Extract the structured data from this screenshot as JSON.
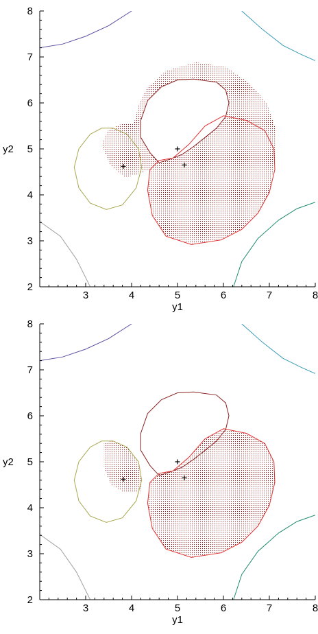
{
  "chart_data": [
    {
      "type": "scatter",
      "title": "",
      "xlabel": "y1",
      "ylabel": "y2",
      "xlim": [
        2,
        8
      ],
      "ylim": [
        2,
        8
      ],
      "x_ticks": [
        2,
        3,
        4,
        5,
        6,
        7,
        8
      ],
      "y_ticks": [
        2,
        3,
        4,
        5,
        6,
        7,
        8
      ],
      "grid": false,
      "points": [
        {
          "x": 3.82,
          "y": 4.62
        },
        {
          "x": 5.0,
          "y": 5.0
        },
        {
          "x": 5.15,
          "y": 4.65
        }
      ],
      "contours": [
        {
          "color": "#5b4ea0",
          "points": [
            [
              2.0,
              7.2
            ],
            [
              2.5,
              7.28
            ],
            [
              3.0,
              7.45
            ],
            [
              3.5,
              7.68
            ],
            [
              4.0,
              8.0
            ]
          ]
        },
        {
          "color": "#3a9ab8",
          "points": [
            [
              6.4,
              8.0
            ],
            [
              6.85,
              7.6
            ],
            [
              7.3,
              7.25
            ],
            [
              7.7,
              7.05
            ],
            [
              8.0,
              6.92
            ]
          ]
        },
        {
          "color": "#a0a0a0",
          "points": [
            [
              2.0,
              3.42
            ],
            [
              2.45,
              3.1
            ],
            [
              2.8,
              2.6
            ],
            [
              3.1,
              2.0
            ]
          ]
        },
        {
          "color": "#1e8a70",
          "points": [
            [
              6.22,
              2.0
            ],
            [
              6.4,
              2.55
            ],
            [
              6.75,
              3.05
            ],
            [
              7.2,
              3.45
            ],
            [
              7.6,
              3.7
            ],
            [
              8.0,
              3.84
            ]
          ]
        },
        {
          "color": "#a8a850",
          "points": [
            [
              3.6,
              5.45
            ],
            [
              3.9,
              5.32
            ],
            [
              4.15,
              5.0
            ],
            [
              4.22,
              4.6
            ],
            [
              4.1,
              4.15
            ],
            [
              3.8,
              3.78
            ],
            [
              3.45,
              3.68
            ],
            [
              3.1,
              3.82
            ],
            [
              2.85,
              4.15
            ],
            [
              2.75,
              4.6
            ],
            [
              2.85,
              5.0
            ],
            [
              3.1,
              5.32
            ],
            [
              3.35,
              5.45
            ],
            [
              3.6,
              5.45
            ]
          ]
        },
        {
          "color": "#8b2222",
          "points": [
            [
              5.35,
              6.52
            ],
            [
              5.85,
              6.45
            ],
            [
              6.05,
              6.28
            ],
            [
              6.12,
              6.0
            ],
            [
              6.05,
              5.7
            ],
            [
              5.85,
              5.45
            ],
            [
              5.6,
              5.25
            ],
            [
              5.35,
              5.05
            ],
            [
              5.1,
              4.88
            ],
            [
              4.85,
              4.78
            ],
            [
              4.6,
              4.7
            ],
            [
              4.4,
              4.92
            ],
            [
              4.2,
              5.25
            ],
            [
              4.2,
              5.62
            ],
            [
              4.35,
              6.05
            ],
            [
              4.65,
              6.35
            ],
            [
              5.0,
              6.5
            ],
            [
              5.35,
              6.52
            ]
          ]
        },
        {
          "color": "#e03030",
          "points": [
            [
              6.0,
              5.72
            ],
            [
              6.5,
              5.62
            ],
            [
              6.9,
              5.4
            ],
            [
              7.1,
              5.0
            ],
            [
              7.12,
              4.55
            ],
            [
              7.0,
              4.05
            ],
            [
              6.75,
              3.6
            ],
            [
              6.4,
              3.25
            ],
            [
              5.95,
              3.02
            ],
            [
              5.3,
              2.92
            ],
            [
              4.75,
              3.1
            ],
            [
              4.45,
              3.55
            ],
            [
              4.35,
              4.1
            ],
            [
              4.4,
              4.55
            ],
            [
              4.6,
              4.75
            ],
            [
              4.9,
              4.8
            ],
            [
              5.25,
              5.1
            ],
            [
              5.6,
              5.5
            ],
            [
              6.0,
              5.72
            ]
          ]
        }
      ],
      "shaded_regions": [
        {
          "color": "#8b1a1a",
          "points": [
            [
              5.4,
              6.88
            ],
            [
              6.05,
              6.78
            ],
            [
              6.55,
              6.45
            ],
            [
              6.95,
              5.98
            ],
            [
              7.15,
              5.4
            ],
            [
              7.12,
              4.75
            ],
            [
              7.0,
              4.05
            ],
            [
              6.75,
              3.6
            ],
            [
              6.4,
              3.25
            ],
            [
              5.95,
              3.02
            ],
            [
              5.3,
              2.92
            ],
            [
              4.75,
              3.1
            ],
            [
              4.45,
              3.55
            ],
            [
              4.35,
              4.1
            ],
            [
              4.4,
              4.55
            ],
            [
              4.15,
              4.45
            ],
            [
              3.85,
              4.38
            ],
            [
              3.55,
              4.62
            ],
            [
              3.35,
              5.1
            ],
            [
              3.5,
              5.42
            ],
            [
              3.8,
              5.55
            ],
            [
              4.05,
              5.55
            ],
            [
              4.15,
              5.95
            ],
            [
              4.35,
              6.35
            ],
            [
              4.75,
              6.7
            ],
            [
              5.4,
              6.88
            ]
          ]
        }
      ],
      "white_regions": [
        {
          "points": [
            [
              5.35,
              6.52
            ],
            [
              5.85,
              6.45
            ],
            [
              6.05,
              6.28
            ],
            [
              6.12,
              6.0
            ],
            [
              6.05,
              5.7
            ],
            [
              5.85,
              5.45
            ],
            [
              5.6,
              5.25
            ],
            [
              5.35,
              5.05
            ],
            [
              5.1,
              4.88
            ],
            [
              4.85,
              4.78
            ],
            [
              4.6,
              4.7
            ],
            [
              4.4,
              4.92
            ],
            [
              4.2,
              5.25
            ],
            [
              4.2,
              5.62
            ],
            [
              4.35,
              6.05
            ],
            [
              4.65,
              6.35
            ],
            [
              5.0,
              6.5
            ],
            [
              5.35,
              6.52
            ]
          ]
        }
      ]
    },
    {
      "type": "scatter",
      "title": "",
      "xlabel": "y1",
      "ylabel": "y2",
      "xlim": [
        2,
        8
      ],
      "ylim": [
        2,
        8
      ],
      "x_ticks": [
        2,
        3,
        4,
        5,
        6,
        7,
        8
      ],
      "y_ticks": [
        2,
        3,
        4,
        5,
        6,
        7,
        8
      ],
      "grid": false,
      "points": [
        {
          "x": 3.82,
          "y": 4.62
        },
        {
          "x": 5.0,
          "y": 5.0
        },
        {
          "x": 5.15,
          "y": 4.65
        }
      ],
      "contours": [
        {
          "color": "#5b4ea0",
          "points": [
            [
              2.0,
              7.2
            ],
            [
              2.5,
              7.28
            ],
            [
              3.0,
              7.45
            ],
            [
              3.5,
              7.68
            ],
            [
              4.0,
              8.0
            ]
          ]
        },
        {
          "color": "#3a9ab8",
          "points": [
            [
              6.4,
              8.0
            ],
            [
              6.85,
              7.6
            ],
            [
              7.3,
              7.25
            ],
            [
              7.7,
              7.05
            ],
            [
              8.0,
              6.92
            ]
          ]
        },
        {
          "color": "#a0a0a0",
          "points": [
            [
              2.0,
              3.42
            ],
            [
              2.45,
              3.1
            ],
            [
              2.8,
              2.6
            ],
            [
              3.1,
              2.0
            ]
          ]
        },
        {
          "color": "#1e8a70",
          "points": [
            [
              6.22,
              2.0
            ],
            [
              6.4,
              2.55
            ],
            [
              6.75,
              3.05
            ],
            [
              7.2,
              3.45
            ],
            [
              7.6,
              3.7
            ],
            [
              8.0,
              3.84
            ]
          ]
        },
        {
          "color": "#a8a850",
          "points": [
            [
              3.6,
              5.45
            ],
            [
              3.9,
              5.32
            ],
            [
              4.15,
              5.0
            ],
            [
              4.22,
              4.6
            ],
            [
              4.1,
              4.15
            ],
            [
              3.8,
              3.78
            ],
            [
              3.45,
              3.68
            ],
            [
              3.1,
              3.82
            ],
            [
              2.85,
              4.15
            ],
            [
              2.75,
              4.6
            ],
            [
              2.85,
              5.0
            ],
            [
              3.1,
              5.32
            ],
            [
              3.35,
              5.45
            ],
            [
              3.6,
              5.45
            ]
          ]
        },
        {
          "color": "#8b2222",
          "points": [
            [
              5.35,
              6.52
            ],
            [
              5.85,
              6.45
            ],
            [
              6.05,
              6.28
            ],
            [
              6.12,
              6.0
            ],
            [
              6.05,
              5.7
            ],
            [
              5.85,
              5.45
            ],
            [
              5.6,
              5.25
            ],
            [
              5.35,
              5.05
            ],
            [
              5.1,
              4.88
            ],
            [
              4.85,
              4.78
            ],
            [
              4.6,
              4.7
            ],
            [
              4.4,
              4.92
            ],
            [
              4.2,
              5.25
            ],
            [
              4.2,
              5.62
            ],
            [
              4.35,
              6.05
            ],
            [
              4.65,
              6.35
            ],
            [
              5.0,
              6.5
            ],
            [
              5.35,
              6.52
            ]
          ]
        },
        {
          "color": "#e03030",
          "points": [
            [
              6.0,
              5.72
            ],
            [
              6.5,
              5.62
            ],
            [
              6.9,
              5.4
            ],
            [
              7.1,
              5.0
            ],
            [
              7.12,
              4.55
            ],
            [
              7.0,
              4.05
            ],
            [
              6.75,
              3.6
            ],
            [
              6.4,
              3.25
            ],
            [
              5.95,
              3.02
            ],
            [
              5.3,
              2.92
            ],
            [
              4.75,
              3.1
            ],
            [
              4.45,
              3.55
            ],
            [
              4.35,
              4.1
            ],
            [
              4.4,
              4.55
            ],
            [
              4.6,
              4.75
            ],
            [
              4.9,
              4.8
            ],
            [
              5.25,
              5.1
            ],
            [
              5.6,
              5.5
            ],
            [
              6.0,
              5.72
            ]
          ]
        }
      ],
      "shaded_regions": [
        {
          "color": "#8b1a1a",
          "points": [
            [
              6.0,
              5.72
            ],
            [
              6.5,
              5.62
            ],
            [
              6.9,
              5.4
            ],
            [
              7.1,
              5.0
            ],
            [
              7.12,
              4.55
            ],
            [
              7.0,
              4.05
            ],
            [
              6.75,
              3.6
            ],
            [
              6.4,
              3.25
            ],
            [
              5.95,
              3.02
            ],
            [
              5.3,
              2.92
            ],
            [
              4.75,
              3.1
            ],
            [
              4.45,
              3.55
            ],
            [
              4.35,
              4.1
            ],
            [
              4.4,
              4.55
            ],
            [
              4.6,
              4.75
            ],
            [
              4.9,
              4.8
            ],
            [
              5.25,
              5.1
            ],
            [
              5.6,
              5.5
            ],
            [
              6.0,
              5.72
            ]
          ]
        },
        {
          "color": "#8b1a1a",
          "points": [
            [
              3.4,
              5.42
            ],
            [
              3.6,
              5.45
            ],
            [
              3.9,
              5.32
            ],
            [
              4.15,
              5.0
            ],
            [
              4.22,
              4.6
            ],
            [
              4.2,
              4.32
            ],
            [
              3.8,
              4.35
            ],
            [
              3.55,
              4.5
            ],
            [
              3.4,
              4.9
            ],
            [
              3.4,
              5.42
            ]
          ]
        }
      ],
      "white_regions": []
    }
  ]
}
